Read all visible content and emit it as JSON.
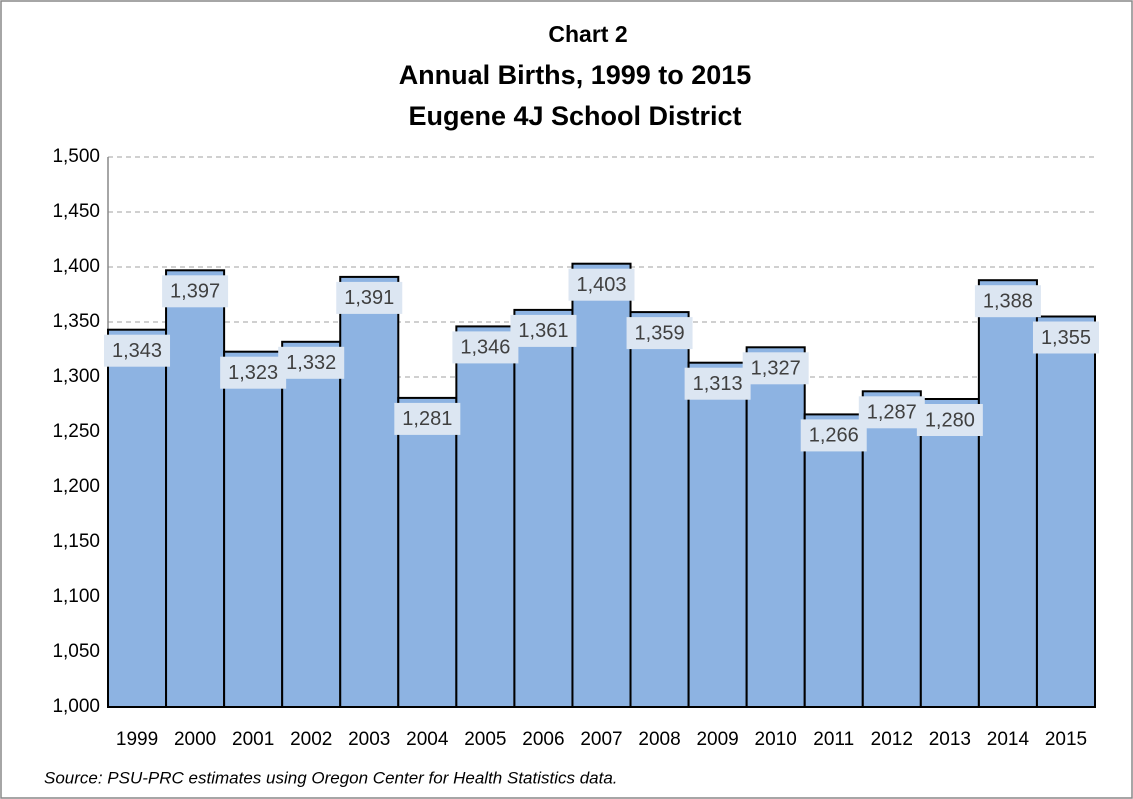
{
  "chart_data": {
    "type": "bar",
    "title": [
      "Chart 2",
      "Annual Births, 1999 to 2015",
      "Eugene 4J School District"
    ],
    "categories": [
      "1999",
      "2000",
      "2001",
      "2002",
      "2003",
      "2004",
      "2005",
      "2006",
      "2007",
      "2008",
      "2009",
      "2010",
      "2011",
      "2012",
      "2013",
      "2014",
      "2015"
    ],
    "values": [
      1343,
      1397,
      1323,
      1332,
      1391,
      1281,
      1346,
      1361,
      1403,
      1359,
      1313,
      1327,
      1266,
      1287,
      1280,
      1388,
      1355
    ],
    "value_labels": [
      "1,343",
      "1,397",
      "1,323",
      "1,332",
      "1,391",
      "1,281",
      "1,346",
      "1,361",
      "1,403",
      "1,359",
      "1,313",
      "1,327",
      "1,266",
      "1,287",
      "1,280",
      "1,388",
      "1,355"
    ],
    "color": "#8db3e2",
    "ylim": [
      1000,
      1500
    ],
    "yticks": [
      {
        "value": 1000,
        "label": "1,000"
      },
      {
        "value": 1050,
        "label": "1,050"
      },
      {
        "value": 1100,
        "label": "1,100"
      },
      {
        "value": 1150,
        "label": "1,150"
      },
      {
        "value": 1200,
        "label": "1,200"
      },
      {
        "value": 1250,
        "label": "1,250"
      },
      {
        "value": 1300,
        "label": "1,300"
      },
      {
        "value": 1350,
        "label": "1,350"
      },
      {
        "value": 1400,
        "label": "1,400"
      },
      {
        "value": 1450,
        "label": "1,450"
      },
      {
        "value": 1500,
        "label": "1,500"
      }
    ],
    "grid": true,
    "source": "Source:  PSU-PRC estimates using Oregon Center for Health Statistics data."
  }
}
